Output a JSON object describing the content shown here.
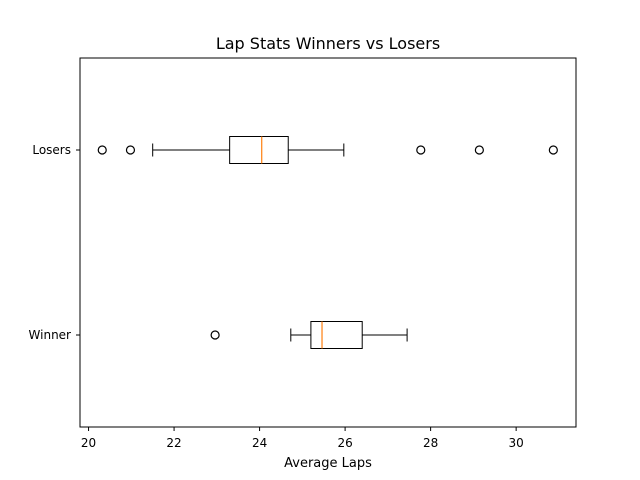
{
  "chart_data": {
    "type": "boxplot",
    "orientation": "horizontal",
    "title": "Lap Stats Winners vs Losers",
    "xlabel": "Average Laps",
    "ylabel": "",
    "xlim": [
      19.8,
      31.4
    ],
    "x_ticks": [
      20,
      22,
      24,
      26,
      28,
      30
    ],
    "grid": false,
    "colors": {
      "box": "#000000",
      "median": "#ff7f0e",
      "flier": "#000000"
    },
    "series": [
      {
        "name": "Losers",
        "whisker_low": 21.5,
        "q1": 23.3,
        "median": 24.05,
        "q3": 24.67,
        "whisker_high": 25.97,
        "fliers": [
          20.32,
          20.98,
          27.77,
          29.14,
          30.87
        ]
      },
      {
        "name": "Winner",
        "whisker_low": 24.73,
        "q1": 25.2,
        "median": 25.46,
        "q3": 26.4,
        "whisker_high": 27.45,
        "fliers": [
          22.96
        ]
      }
    ]
  }
}
